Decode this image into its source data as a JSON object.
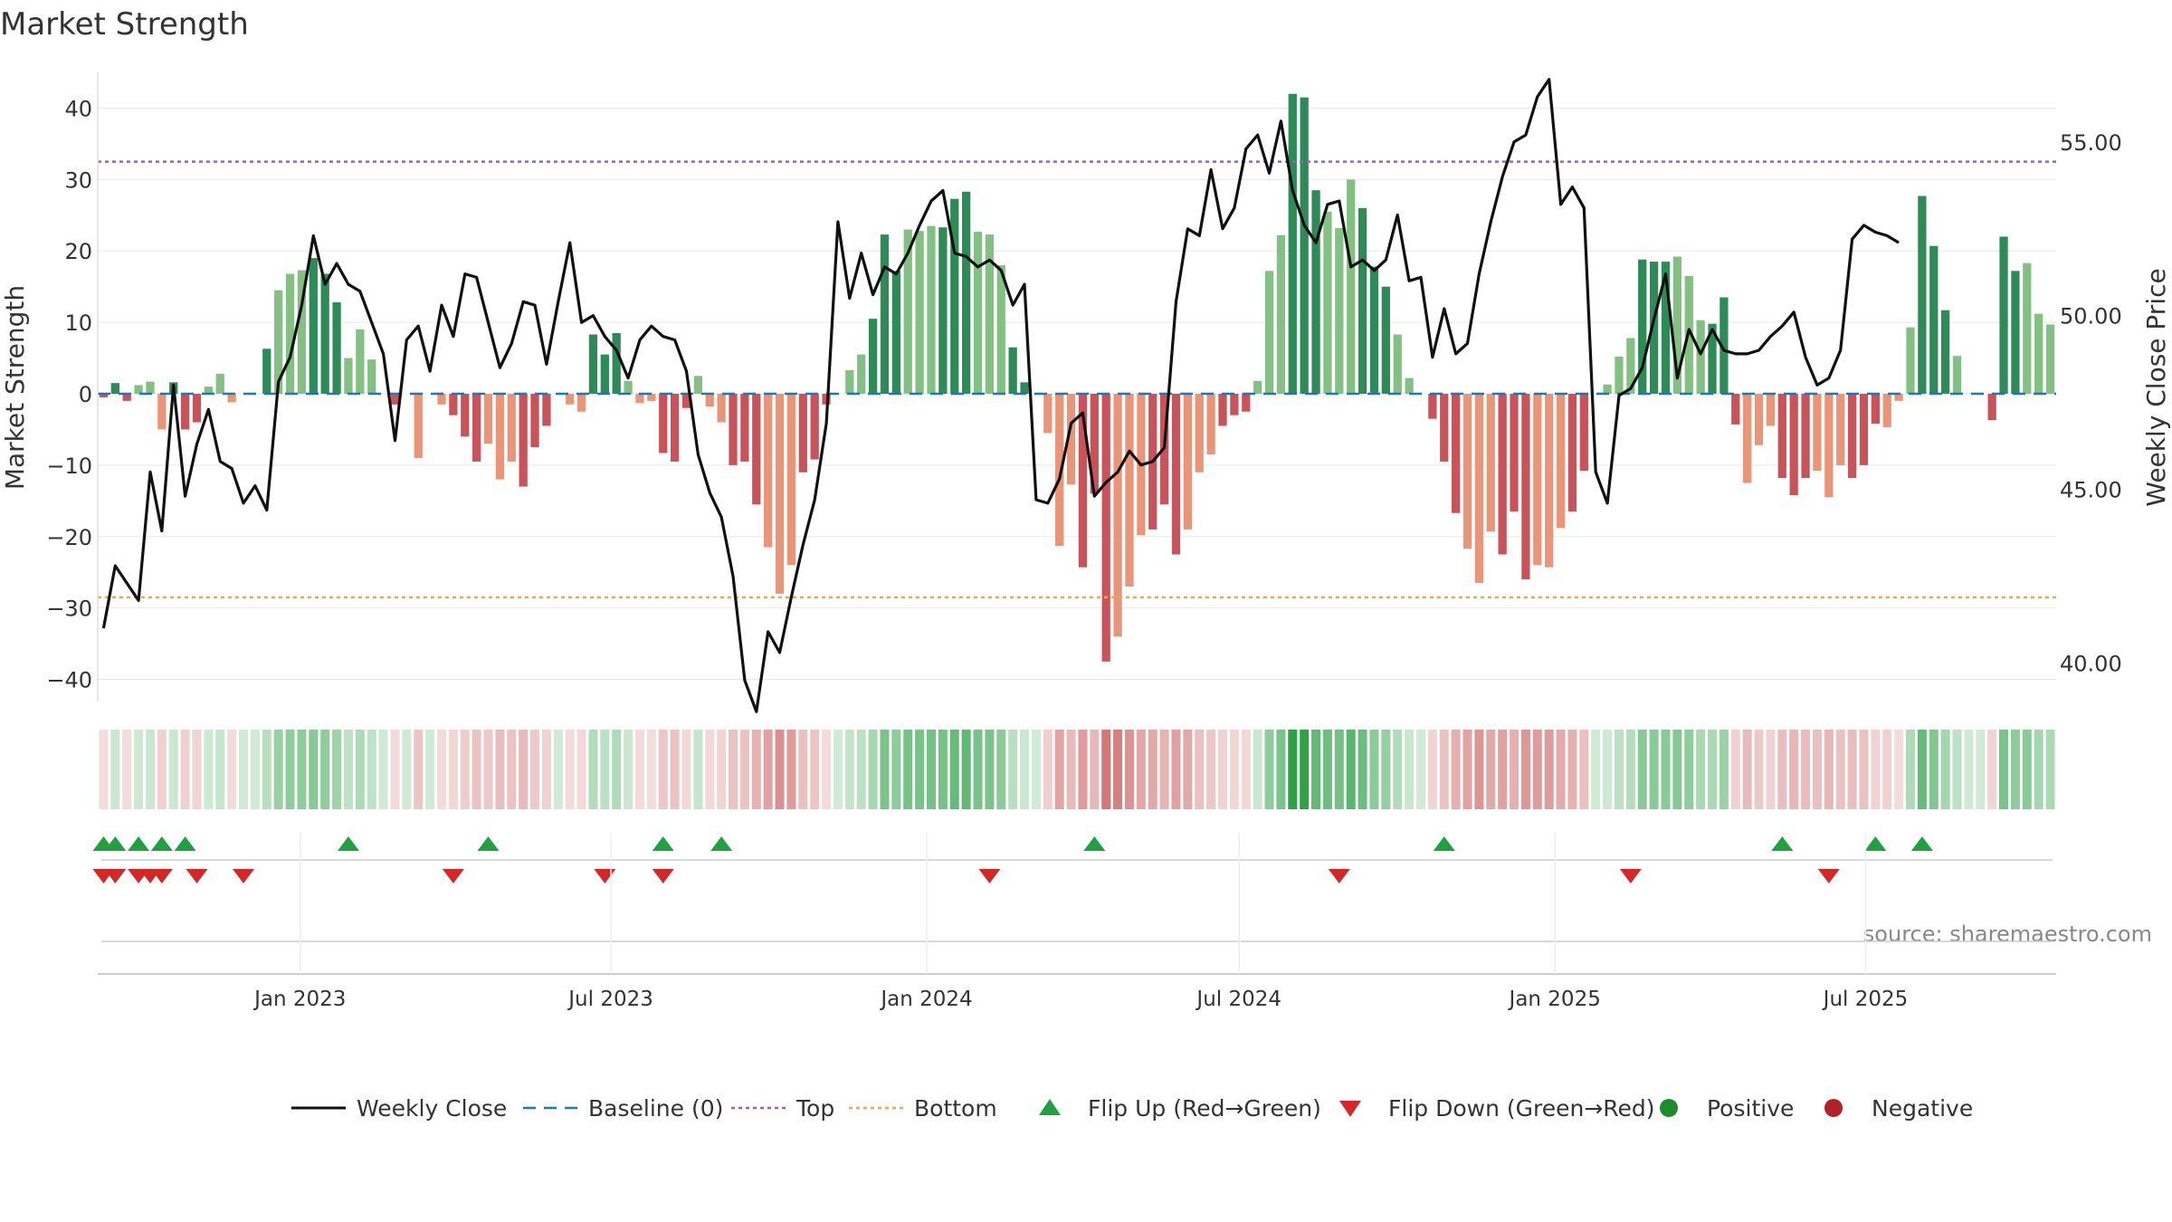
{
  "chart_data": {
    "type": "bar",
    "title": "Market Strength",
    "ylabel_left": "Market Strength",
    "ylabel_right": "Weekly Close Price",
    "source": "source: sharemaestro.com",
    "ylim_left": [
      -45,
      45
    ],
    "ylim_right": [
      38.5,
      57.0
    ],
    "yticks_left": [
      40,
      30,
      20,
      10,
      0,
      -10,
      -20,
      -30,
      -40
    ],
    "yticks_left_labels": [
      "40",
      "30",
      "20",
      "10",
      "0",
      "−10",
      "−20",
      "−30",
      "−40"
    ],
    "yticks_right": [
      55,
      50,
      45,
      40
    ],
    "yticks_right_labels": [
      "55.00",
      "50.00",
      "45.00",
      "40.00"
    ],
    "x_start": "2022-09-05",
    "x_end": "2025-10-20",
    "x_ticks": [
      {
        "label": "Jan 2023",
        "date": "2023-01-01"
      },
      {
        "label": "Jul 2023",
        "date": "2023-07-01"
      },
      {
        "label": "Jan 2024",
        "date": "2024-01-01"
      },
      {
        "label": "Jul 2024",
        "date": "2024-07-01"
      },
      {
        "label": "Jan 2025",
        "date": "2025-01-01"
      },
      {
        "label": "Jul 2025",
        "date": "2025-07-01"
      }
    ],
    "top_line": 32.5,
    "bottom_line": -28.5,
    "baseline": 0,
    "strength": [
      -0.5,
      1.5,
      -1,
      1.2,
      1.7,
      -5,
      1.6,
      -5,
      -4,
      1,
      2.8,
      -1.2,
      0,
      0,
      6.3,
      14.5,
      16.8,
      17.3,
      19,
      16.8,
      12.8,
      5,
      9,
      4.8,
      0,
      -1.5,
      0,
      -9,
      0,
      -1.5,
      -3,
      -6,
      -9.5,
      -7,
      -12,
      -9.5,
      -13,
      -7.5,
      -4.5,
      0,
      -1.5,
      -2.5,
      8.3,
      5.5,
      8.5,
      1.8,
      -1.3,
      -1,
      -8.3,
      -9.5,
      -2,
      2.5,
      -1.8,
      -4,
      -10,
      -9.5,
      -15.5,
      -21.5,
      -28,
      -24,
      -11,
      -9.2,
      -1.5,
      0,
      3.3,
      5.5,
      10.5,
      22.3,
      17.2,
      23,
      22.8,
      23.5,
      23.3,
      27.3,
      28.3,
      22.7,
      22.3,
      18,
      6.5,
      1.6,
      0,
      -5.5,
      -21.3,
      -12.7,
      -24.3,
      -14,
      -37.5,
      -34,
      -27,
      -19.8,
      -19,
      -15.5,
      -22.5,
      -19,
      -11,
      -8.5,
      -4.5,
      -3,
      -2.5,
      1.8,
      17.2,
      22.2,
      42,
      41.5,
      28.5,
      25.5,
      23.2,
      30,
      26,
      17.8,
      15,
      8.3,
      2.2,
      0,
      -3.5,
      -9.5,
      -16.7,
      -21.7,
      -26.5,
      -19.3,
      -22.5,
      -16.5,
      -26,
      -24,
      -24.3,
      -18.8,
      -16.5,
      -10.8,
      0,
      1.3,
      5.2,
      7.8,
      18.8,
      18.5,
      18.5,
      19.2,
      16.5,
      10.3,
      9.8,
      13.5,
      -4.3,
      -12.5,
      -7.2,
      -4.5,
      -11.8,
      -14.2,
      -11.8,
      -10.8,
      -14.5,
      -10,
      -11.8,
      -10,
      -4.2,
      -4.7,
      -1,
      9.3,
      27.7,
      20.7,
      11.7,
      5.3,
      0,
      0,
      -3.7,
      22,
      17.2,
      18.3,
      11.2,
      9.7
    ],
    "price": [
      41.0,
      42.8,
      42.3,
      41.8,
      45.5,
      43.8,
      48.0,
      44.8,
      46.3,
      47.3,
      45.8,
      45.6,
      44.6,
      45.1,
      44.4,
      48.1,
      48.8,
      50.3,
      52.3,
      50.9,
      51.5,
      50.9,
      50.7,
      49.8,
      48.9,
      46.4,
      49.3,
      49.7,
      48.4,
      50.3,
      49.4,
      51.2,
      51.1,
      49.8,
      48.5,
      49.2,
      50.4,
      50.3,
      48.6,
      50.4,
      52.1,
      49.8,
      50.0,
      49.4,
      49.0,
      48.2,
      49.3,
      49.7,
      49.4,
      49.3,
      48.4,
      46.0,
      44.9,
      44.2,
      42.5,
      39.5,
      38.6,
      40.9,
      40.3,
      41.9,
      43.4,
      44.7,
      46.9,
      52.7,
      50.5,
      51.8,
      50.6,
      51.4,
      51.2,
      51.8,
      52.6,
      53.3,
      53.6,
      51.8,
      51.7,
      51.4,
      51.6,
      51.3,
      50.3,
      50.9,
      44.7,
      44.6,
      45.3,
      46.9,
      47.2,
      44.8,
      45.2,
      45.5,
      46.1,
      45.7,
      45.8,
      46.2,
      50.4,
      52.5,
      52.3,
      54.2,
      52.5,
      53.1,
      54.8,
      55.2,
      54.1,
      55.6,
      53.6,
      52.6,
      52.1,
      53.2,
      53.3,
      51.4,
      51.6,
      51.3,
      51.6,
      52.9,
      51.0,
      51.1,
      48.8,
      50.2,
      48.9,
      49.2,
      51.2,
      52.7,
      54.0,
      55.0,
      55.2,
      56.3,
      56.8,
      53.2,
      53.7,
      53.1,
      45.5,
      44.6,
      47.7,
      47.9,
      48.5,
      49.9,
      51.2,
      48.2,
      49.6,
      48.9,
      49.6,
      49.0,
      48.9,
      48.9,
      49.0,
      49.4,
      49.7,
      50.1,
      48.8,
      48.0,
      48.2,
      49.0,
      52.2,
      52.6,
      52.4,
      52.3,
      52.1
    ],
    "flips_up": [
      0,
      1,
      3,
      5,
      7,
      21,
      33,
      48,
      53,
      85,
      115,
      144,
      152,
      156
    ],
    "flips_down": [
      0,
      1,
      3,
      4,
      5,
      8,
      12,
      30,
      43,
      48,
      76,
      106,
      131,
      148
    ],
    "legend": [
      {
        "label": "Weekly Close",
        "kind": "line",
        "color": "#111111"
      },
      {
        "label": "Baseline (0)",
        "kind": "dash",
        "color": "#1f77b4"
      },
      {
        "label": "Top",
        "kind": "dot",
        "color": "#9467bd"
      },
      {
        "label": "Bottom",
        "kind": "dot",
        "color": "#f0a45d"
      },
      {
        "label": "Flip Up (Red→Green)",
        "kind": "tri-up",
        "color": "#20a040"
      },
      {
        "label": "Flip Down (Green→Red)",
        "kind": "tri-down",
        "color": "#d62728"
      },
      {
        "label": "Positive",
        "kind": "circle",
        "color": "#1e8c2c"
      },
      {
        "label": "Negative",
        "kind": "circle",
        "color": "#b22028"
      }
    ],
    "colors": {
      "pos_dark": "#2e8b57",
      "pos_light": "#84c084",
      "neg_dark": "#c8535a",
      "neg_light": "#e8957a",
      "price_line": "#111111",
      "baseline": "#1f77b4",
      "top": "#9467bd",
      "bottom": "#f0a45d",
      "grid": "#e8e8e8"
    }
  }
}
